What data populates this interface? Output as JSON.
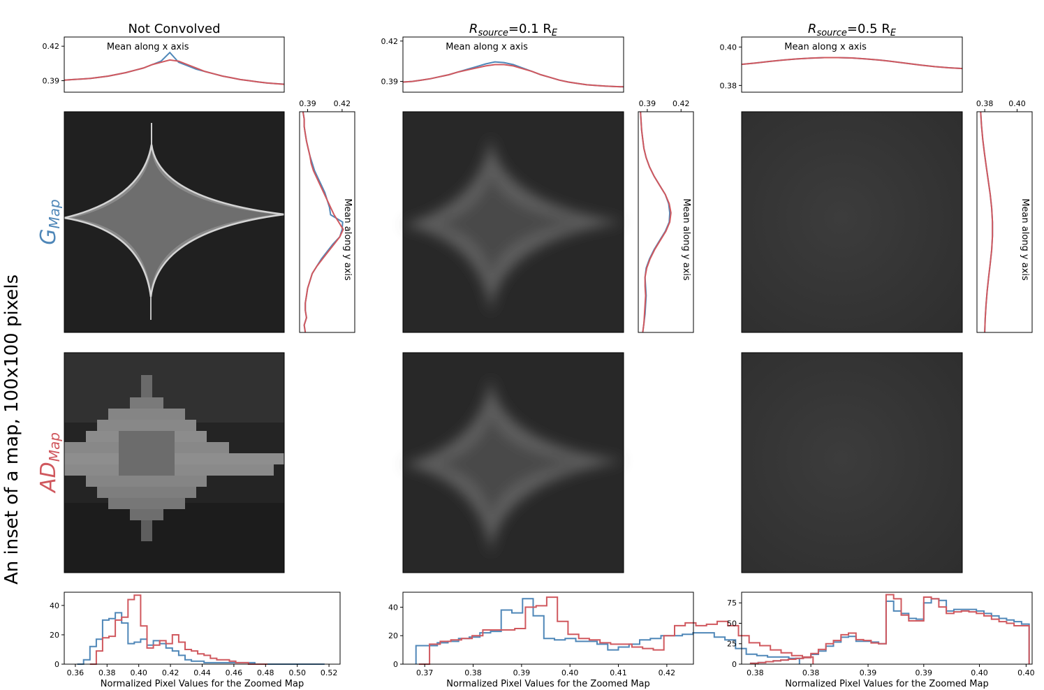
{
  "figure": {
    "side_label": "An inset of a map, 100x100 pixels",
    "rows": [
      {
        "main": "G",
        "sub": "Map",
        "color": "#4f87b8"
      },
      {
        "main": "AD",
        "sub": "Map",
        "color": "#d0585e"
      }
    ],
    "columns": [
      {
        "title": "Not Convolved",
        "title_main": "",
        "title_sub": "",
        "title_rest": ""
      },
      {
        "title": "",
        "title_main": "R",
        "title_sub": "source",
        "title_rest": "=0.1 R",
        "title_sub2": "E"
      },
      {
        "title": "",
        "title_main": "R",
        "title_sub": "source",
        "title_rest": "=0.5 R",
        "title_sub2": "E"
      }
    ],
    "profile_x_label": "Mean along x axis",
    "profile_y_label": "Mean along y axis",
    "hist_xlabel": "Normalized Pixel Values for the Zoomed Map",
    "colors": {
      "G": "#4f87b8",
      "AD": "#d0585e"
    }
  },
  "chart_data": [
    {
      "type": "line",
      "panel": "x-profile-not-convolved",
      "text": "Mean along x axis",
      "ylim": [
        0.38,
        0.428
      ],
      "yticks": [
        "0.39",
        "0.42"
      ],
      "series": [
        {
          "name": "G",
          "values": [
            0.3905,
            0.391,
            0.3915,
            0.392,
            0.393,
            0.394,
            0.3955,
            0.397,
            0.399,
            0.401,
            0.404,
            0.407,
            0.4145,
            0.406,
            0.403,
            0.4,
            0.398,
            0.396,
            0.394,
            0.3925,
            0.391,
            0.39,
            0.389,
            0.388,
            0.3875,
            0.387
          ]
        },
        {
          "name": "AD",
          "values": [
            0.3905,
            0.391,
            0.3915,
            0.392,
            0.393,
            0.394,
            0.3955,
            0.397,
            0.399,
            0.401,
            0.404,
            0.406,
            0.408,
            0.407,
            0.404,
            0.401,
            0.398,
            0.396,
            0.394,
            0.3925,
            0.391,
            0.39,
            0.389,
            0.388,
            0.3875,
            0.3868
          ]
        }
      ]
    },
    {
      "type": "line",
      "panel": "x-profile-r01",
      "text": "Mean along x axis",
      "ylim": [
        0.382,
        0.423
      ],
      "yticks": [
        "0.39",
        "0.42"
      ],
      "series": [
        {
          "name": "G",
          "values": [
            0.3895,
            0.39,
            0.391,
            0.392,
            0.3935,
            0.395,
            0.397,
            0.399,
            0.401,
            0.403,
            0.4045,
            0.404,
            0.4025,
            0.4,
            0.3975,
            0.395,
            0.393,
            0.391,
            0.3895,
            0.3885,
            0.3875,
            0.387,
            0.3865,
            0.3862,
            0.386
          ]
        },
        {
          "name": "AD",
          "values": [
            0.3895,
            0.39,
            0.391,
            0.392,
            0.3935,
            0.395,
            0.397,
            0.3985,
            0.4,
            0.4015,
            0.4025,
            0.4025,
            0.4015,
            0.3995,
            0.3975,
            0.395,
            0.393,
            0.391,
            0.3895,
            0.3885,
            0.3875,
            0.387,
            0.3865,
            0.3862,
            0.386
          ]
        }
      ]
    },
    {
      "type": "line",
      "panel": "x-profile-r05",
      "text": "Mean along x axis",
      "ylim": [
        0.3765,
        0.4052
      ],
      "yticks": [
        "0.38",
        "0.40"
      ],
      "series": [
        {
          "name": "G",
          "values": [
            0.391,
            0.3917,
            0.3925,
            0.3932,
            0.3938,
            0.3942,
            0.3945,
            0.3945,
            0.3943,
            0.3938,
            0.3932,
            0.3924,
            0.3915,
            0.3906,
            0.3898,
            0.3892,
            0.3888
          ]
        },
        {
          "name": "AD",
          "values": [
            0.391,
            0.3917,
            0.3925,
            0.3932,
            0.3938,
            0.3942,
            0.3945,
            0.3945,
            0.3943,
            0.3938,
            0.3932,
            0.3924,
            0.3915,
            0.3906,
            0.3898,
            0.3892,
            0.3888
          ]
        }
      ]
    },
    {
      "type": "line",
      "panel": "y-profile-not-convolved",
      "text": "Mean along y axis",
      "xlim": [
        0.383,
        0.431
      ],
      "xticks": [
        "0.39",
        "0.42"
      ],
      "series": [
        {
          "name": "G",
          "values": [
            0.386,
            0.387,
            0.387,
            0.388,
            0.389,
            0.3905,
            0.392,
            0.394,
            0.396,
            0.399,
            0.402,
            0.405,
            0.407,
            0.409,
            0.41,
            0.4205,
            0.42,
            0.418,
            0.412,
            0.407,
            0.402,
            0.398,
            0.394,
            0.392,
            0.39,
            0.389,
            0.388,
            0.388,
            0.389,
            0.387,
            0.388
          ]
        },
        {
          "name": "AD",
          "values": [
            0.386,
            0.387,
            0.387,
            0.388,
            0.389,
            0.3905,
            0.392,
            0.393,
            0.395,
            0.398,
            0.401,
            0.404,
            0.407,
            0.41,
            0.413,
            0.417,
            0.421,
            0.418,
            0.413,
            0.408,
            0.403,
            0.398,
            0.394,
            0.392,
            0.39,
            0.389,
            0.388,
            0.388,
            0.389,
            0.387,
            0.388
          ]
        }
      ]
    },
    {
      "type": "line",
      "panel": "y-profile-r01",
      "text": "Mean along y axis",
      "xlim": [
        0.382,
        0.431
      ],
      "xticks": [
        "0.39",
        "0.42"
      ],
      "series": [
        {
          "name": "G",
          "values": [
            0.384,
            0.3845,
            0.385,
            0.386,
            0.387,
            0.389,
            0.392,
            0.396,
            0.401,
            0.406,
            0.409,
            0.41,
            0.4095,
            0.406,
            0.401,
            0.396,
            0.392,
            0.389,
            0.388,
            0.3885,
            0.389,
            0.3885,
            0.388,
            0.387,
            0.386
          ]
        },
        {
          "name": "AD",
          "values": [
            0.384,
            0.3845,
            0.385,
            0.386,
            0.387,
            0.389,
            0.392,
            0.396,
            0.401,
            0.406,
            0.4095,
            0.411,
            0.41,
            0.4065,
            0.4015,
            0.3965,
            0.3925,
            0.3895,
            0.388,
            0.388,
            0.3885,
            0.388,
            0.3875,
            0.387,
            0.386
          ]
        }
      ]
    },
    {
      "type": "line",
      "panel": "y-profile-r05",
      "text": "Mean along y axis",
      "xlim": [
        0.3752,
        0.4093
      ],
      "xticks": [
        "0.38",
        "0.40"
      ],
      "series": [
        {
          "name": "G",
          "values": [
            0.3775,
            0.378,
            0.3788,
            0.3798,
            0.381,
            0.3822,
            0.3834,
            0.3843,
            0.3848,
            0.3848,
            0.3843,
            0.3834,
            0.3824,
            0.3815,
            0.3808,
            0.3803,
            0.38
          ]
        },
        {
          "name": "AD",
          "values": [
            0.3775,
            0.378,
            0.3788,
            0.3798,
            0.381,
            0.3822,
            0.3834,
            0.3843,
            0.3848,
            0.3848,
            0.3843,
            0.3834,
            0.3824,
            0.3815,
            0.3808,
            0.3803,
            0.38
          ]
        }
      ]
    },
    {
      "type": "bar",
      "panel": "histogram-not-convolved",
      "xlabel": "Normalized Pixel Values for the Zoomed Map",
      "xlim": [
        0.353,
        0.527
      ],
      "ylim": [
        0,
        49
      ],
      "xticks": [
        "0.36",
        "0.38",
        "0.40",
        "0.42",
        "0.44",
        "0.46",
        "0.48",
        "0.50",
        "0.52"
      ],
      "yticks": [
        "0",
        "20",
        "40"
      ],
      "series": [
        {
          "name": "G",
          "start": 0.3612,
          "width": 0.004,
          "values": [
            0,
            3,
            12,
            17,
            30,
            31,
            35,
            28,
            14,
            15,
            17,
            13,
            16,
            14,
            11,
            9,
            6,
            3,
            2,
            2,
            1,
            1,
            1,
            1,
            1,
            1,
            1,
            1,
            0,
            0,
            0,
            0,
            0,
            0,
            0,
            0,
            0,
            0,
            0
          ]
        },
        {
          "name": "AD",
          "start": 0.3692,
          "width": 0.004,
          "values": [
            0,
            9,
            18,
            19,
            30,
            32,
            44,
            47,
            26,
            11,
            13,
            16,
            14,
            20,
            15,
            10,
            9,
            7,
            6,
            4,
            3,
            3,
            2,
            1,
            1,
            0,
            0,
            0
          ]
        }
      ]
    },
    {
      "type": "bar",
      "panel": "histogram-r01",
      "xlabel": "Normalized Pixel Values for the Zoomed Map",
      "xlim": [
        0.3655,
        0.4255
      ],
      "ylim": [
        0,
        50.5
      ],
      "xticks": [
        "0.37",
        "0.38",
        "0.39",
        "0.40",
        "0.41",
        "0.42"
      ],
      "yticks": [
        "0",
        "20",
        "40"
      ],
      "series": [
        {
          "name": "G",
          "start": 0.3682,
          "width": 0.0022,
          "values": [
            13,
            13,
            15,
            16,
            18,
            19,
            22,
            23,
            38,
            36,
            46,
            34,
            18,
            17,
            18,
            16,
            16,
            14,
            10,
            12,
            14,
            17,
            18,
            20,
            20,
            21,
            22,
            22,
            19,
            17,
            11,
            7,
            6,
            5,
            5,
            4
          ]
        },
        {
          "name": "AD",
          "start": 0.3688,
          "width": 0.0022,
          "values": [
            0,
            14,
            16,
            17,
            18,
            20,
            24,
            24,
            24,
            25,
            40,
            41,
            47,
            30,
            21,
            18,
            17,
            15,
            14,
            14,
            12,
            11,
            10,
            20,
            27,
            29,
            27,
            28,
            30,
            27,
            20,
            15,
            13,
            10,
            8,
            6,
            5
          ]
        }
      ]
    },
    {
      "type": "bar",
      "panel": "histogram-r05",
      "xlabel": "Normalized Pixel Values for the Zoomed Map",
      "xlim": [
        0.3789,
        0.3982
      ],
      "ylim": [
        0,
        88
      ],
      "xticks": [
        "0.38",
        "0.38",
        "0.39",
        "0.39",
        "0.40",
        "0.40"
      ],
      "yticks": [
        "0",
        "25",
        "50",
        "75"
      ],
      "series": [
        {
          "name": "G",
          "start": 0.3795,
          "width": 0.0005,
          "values": [
            1,
            2,
            3,
            4,
            5,
            6,
            7,
            8,
            12,
            16,
            22,
            27,
            33,
            34,
            28,
            28,
            27,
            25,
            77,
            65,
            62,
            56,
            55,
            75,
            80,
            78,
            65,
            67,
            67,
            67,
            65,
            62,
            59,
            56,
            54,
            52,
            49
          ]
        },
        {
          "name": "AD",
          "start": 0.3795,
          "width": 0.0005,
          "values": [
            1,
            2,
            3,
            4,
            5,
            6,
            7,
            8,
            13,
            18,
            25,
            29,
            36,
            38,
            30,
            29,
            26,
            25,
            85,
            80,
            60,
            53,
            53,
            82,
            80,
            70,
            62,
            64,
            65,
            64,
            62,
            59,
            55,
            52,
            50,
            47,
            47
          ]
        }
      ]
    }
  ]
}
